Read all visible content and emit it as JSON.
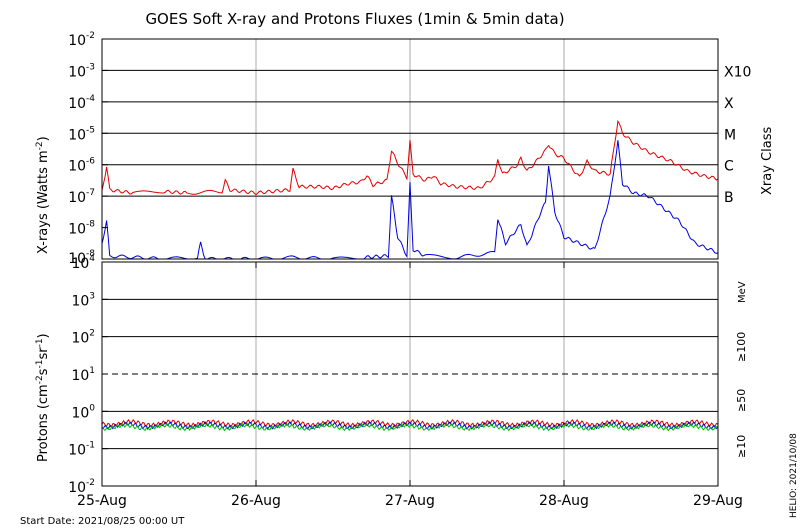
{
  "chart_data": [
    {
      "type": "line",
      "title": "GOES Soft X-ray and Protons Fluxes   (1min & 5min data)",
      "ylabel_main": "X-rays (Watts m",
      "ylabel_sup": "-2",
      "ylabel_close": ")",
      "y_scale": "log",
      "ylim_exp": [
        -9,
        -2
      ],
      "y_ticks": [
        {
          "base": "10",
          "exp": "-2",
          "e": -2
        },
        {
          "base": "10",
          "exp": "-3",
          "e": -3
        },
        {
          "base": "10",
          "exp": "-4",
          "e": -4
        },
        {
          "base": "10",
          "exp": "-5",
          "e": -5
        },
        {
          "base": "10",
          "exp": "-6",
          "e": -6
        },
        {
          "base": "10",
          "exp": "-7",
          "e": -7
        },
        {
          "base": "10",
          "exp": "-8",
          "e": -8
        }
      ],
      "right_axis_label": "Xray Class",
      "class_labels": [
        {
          "label": "X10",
          "e": -3
        },
        {
          "label": "X",
          "e": -4
        },
        {
          "label": "M",
          "e": -5
        },
        {
          "label": "C",
          "e": -6
        },
        {
          "label": "B",
          "e": -7
        }
      ],
      "grid": true,
      "x_range_days": [
        0,
        4
      ],
      "series": [
        {
          "color": "#e00000",
          "points": [
            [
              0,
              -6.85
            ],
            [
              0.03,
              -6.05
            ],
            [
              0.05,
              -6.8
            ],
            [
              0.2,
              -6.9
            ],
            [
              0.4,
              -6.85
            ],
            [
              0.55,
              -6.9
            ],
            [
              0.78,
              -6.85
            ],
            [
              0.8,
              -6.5
            ],
            [
              0.83,
              -6.8
            ],
            [
              1.0,
              -6.9
            ],
            [
              1.1,
              -6.85
            ],
            [
              1.22,
              -6.8
            ],
            [
              1.24,
              -6.15
            ],
            [
              1.28,
              -6.7
            ],
            [
              1.42,
              -6.7
            ],
            [
              1.5,
              -6.75
            ],
            [
              1.6,
              -6.6
            ],
            [
              1.68,
              -6.55
            ],
            [
              1.72,
              -6.35
            ],
            [
              1.76,
              -6.65
            ],
            [
              1.85,
              -6.5
            ],
            [
              1.88,
              -5.55
            ],
            [
              1.92,
              -5.95
            ],
            [
              1.98,
              -6.4
            ],
            [
              2.0,
              -5.25
            ],
            [
              2.02,
              -6.3
            ],
            [
              2.1,
              -6.5
            ],
            [
              2.15,
              -6.35
            ],
            [
              2.2,
              -6.6
            ],
            [
              2.3,
              -6.7
            ],
            [
              2.45,
              -6.75
            ],
            [
              2.55,
              -6.4
            ],
            [
              2.57,
              -5.8
            ],
            [
              2.6,
              -6.3
            ],
            [
              2.7,
              -6.0
            ],
            [
              2.72,
              -5.8
            ],
            [
              2.76,
              -6.2
            ],
            [
              2.8,
              -6.0
            ],
            [
              2.88,
              -5.55
            ],
            [
              2.9,
              -5.35
            ],
            [
              2.94,
              -5.65
            ],
            [
              3.0,
              -5.8
            ],
            [
              3.05,
              -6.1
            ],
            [
              3.1,
              -6.4
            ],
            [
              3.15,
              -5.9
            ],
            [
              3.2,
              -6.2
            ],
            [
              3.3,
              -6.3
            ],
            [
              3.35,
              -4.6
            ],
            [
              3.38,
              -5.0
            ],
            [
              3.45,
              -5.3
            ],
            [
              3.55,
              -5.6
            ],
            [
              3.7,
              -5.9
            ],
            [
              3.8,
              -6.2
            ],
            [
              3.9,
              -6.35
            ],
            [
              4.0,
              -6.45
            ]
          ]
        },
        {
          "color": "#0000e0",
          "points": [
            [
              0,
              -8.5
            ],
            [
              0.03,
              -7.8
            ],
            [
              0.05,
              -8.9
            ],
            [
              0.4,
              -9.0
            ],
            [
              0.62,
              -8.95
            ],
            [
              0.64,
              -8.5
            ],
            [
              0.67,
              -9.0
            ],
            [
              1.0,
              -9.0
            ],
            [
              1.24,
              -8.95
            ],
            [
              1.5,
              -9.0
            ],
            [
              1.7,
              -8.95
            ],
            [
              1.86,
              -8.9
            ],
            [
              1.88,
              -7.0
            ],
            [
              1.92,
              -8.3
            ],
            [
              1.98,
              -8.9
            ],
            [
              2.0,
              -6.6
            ],
            [
              2.02,
              -8.7
            ],
            [
              2.1,
              -8.9
            ],
            [
              2.3,
              -8.95
            ],
            [
              2.55,
              -8.8
            ],
            [
              2.57,
              -7.7
            ],
            [
              2.62,
              -8.5
            ],
            [
              2.72,
              -7.9
            ],
            [
              2.76,
              -8.6
            ],
            [
              2.85,
              -7.5
            ],
            [
              2.88,
              -7.2
            ],
            [
              2.9,
              -6.0
            ],
            [
              2.94,
              -7.5
            ],
            [
              3.0,
              -8.3
            ],
            [
              3.1,
              -8.5
            ],
            [
              3.2,
              -8.7
            ],
            [
              3.3,
              -7.0
            ],
            [
              3.35,
              -5.25
            ],
            [
              3.38,
              -6.6
            ],
            [
              3.45,
              -6.9
            ],
            [
              3.55,
              -7.0
            ],
            [
              3.65,
              -7.4
            ],
            [
              3.75,
              -7.8
            ],
            [
              3.85,
              -8.5
            ],
            [
              3.95,
              -8.7
            ],
            [
              4.0,
              -8.8
            ]
          ]
        }
      ]
    },
    {
      "type": "line",
      "ylabel_main": "Protons (cm",
      "ylabel_sup1": "-2",
      "ylabel_mid": "s",
      "ylabel_sup2": "-1",
      "ylabel_mid2": "sr",
      "ylabel_sup3": "-1",
      "ylabel_close": ")",
      "y_scale": "log",
      "ylim_exp": [
        -2,
        4
      ],
      "y_ticks": [
        {
          "base": "10",
          "exp": "4",
          "e": 4
        },
        {
          "base": "10",
          "exp": "3",
          "e": 3
        },
        {
          "base": "10",
          "exp": "2",
          "e": 2
        },
        {
          "base": "10",
          "exp": "1",
          "e": 1
        },
        {
          "base": "10",
          "exp": "0",
          "e": 0
        },
        {
          "base": "10",
          "exp": "-1",
          "e": -1
        },
        {
          "base": "10",
          "exp": "-2",
          "e": -2
        }
      ],
      "threshold_exp": 1,
      "unit_label": "MeV",
      "energy_labels": [
        {
          "label": "≥100",
          "color": "#00c000"
        },
        {
          "label": "≥50",
          "color": "#0000e0"
        },
        {
          "label": "≥10",
          "color": "#e00000"
        }
      ],
      "series": [
        {
          "name": "≥10",
          "color": "#e00000",
          "level_exp": -0.32
        },
        {
          "name": "≥50",
          "color": "#0000e0",
          "level_exp": -0.38
        },
        {
          "name": "≥100",
          "color": "#00c000",
          "level_exp": -0.42
        }
      ],
      "x_ticks": [
        "25-Aug",
        "26-Aug",
        "27-Aug",
        "28-Aug",
        "29-Aug"
      ]
    }
  ],
  "footer": {
    "start_date": "Start Date: 2021/08/25 00:00 UT",
    "helio": "HELIO: 2021/10/08"
  }
}
